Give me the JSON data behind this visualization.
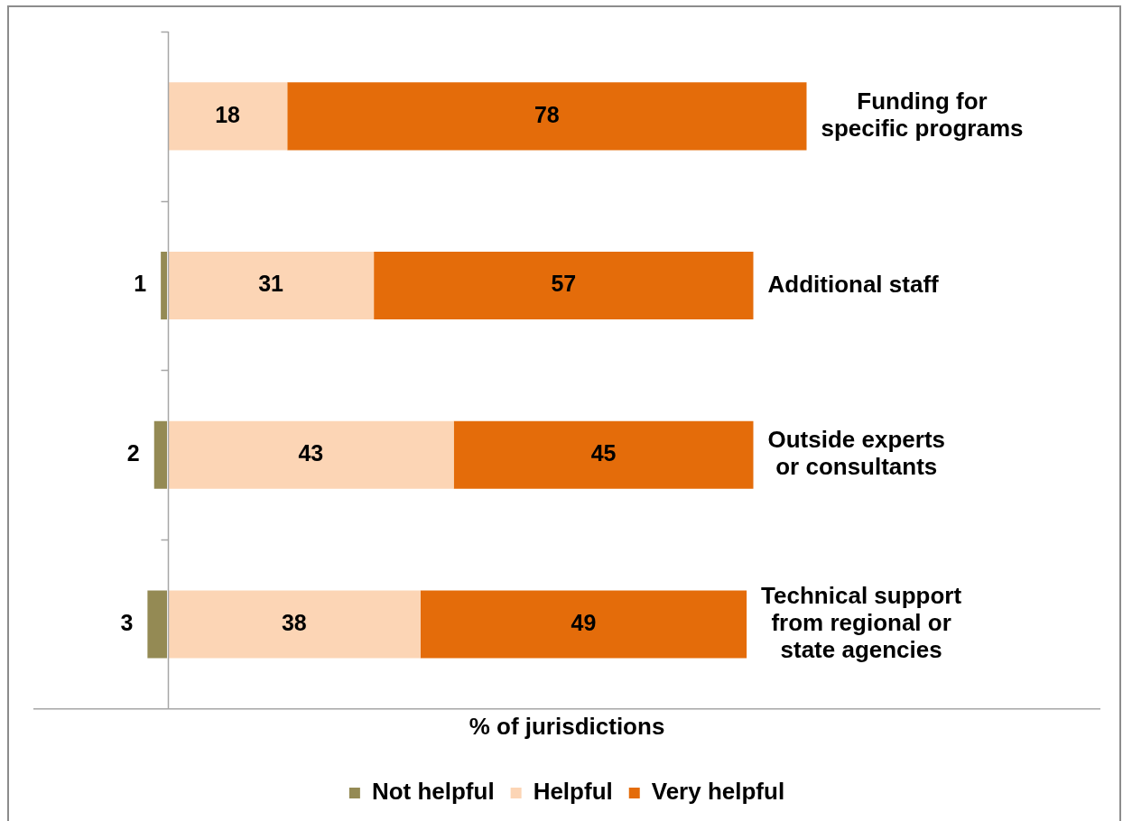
{
  "chart_data": {
    "type": "bar",
    "orientation": "horizontal",
    "stacked": true,
    "categories": [
      "Funding for\nspecific programs",
      "Additional staff",
      "Outside experts\nor consultants",
      "Technical support\nfrom regional or\nstate agencies"
    ],
    "series": [
      {
        "name": "Not helpful",
        "color": "#948a54",
        "values": [
          null,
          -1,
          -2,
          -3
        ]
      },
      {
        "name": "Helpful",
        "color": "#fcd5b5",
        "values": [
          18,
          31,
          43,
          38
        ],
        "value_labels": [
          "18",
          "31",
          "43",
          "38"
        ]
      },
      {
        "name": "Very helpful",
        "color": "#e46c0a",
        "values": [
          78,
          57,
          45,
          49
        ],
        "value_labels": [
          "78",
          "57",
          "45",
          "49"
        ]
      }
    ],
    "annotations": [
      {
        "text": "1",
        "x": -1,
        "y": "Additional staff"
      },
      {
        "text": "2",
        "x": -2,
        "y": "Outside experts\nor consultants"
      },
      {
        "text": "3",
        "x": -3,
        "y": "Technical support\nfrom regional or\nstate agencies"
      }
    ],
    "xlabel": "% of jurisdictions",
    "xlim": [
      -20,
      140
    ],
    "tick_labels": "y",
    "legend": "bottom"
  }
}
